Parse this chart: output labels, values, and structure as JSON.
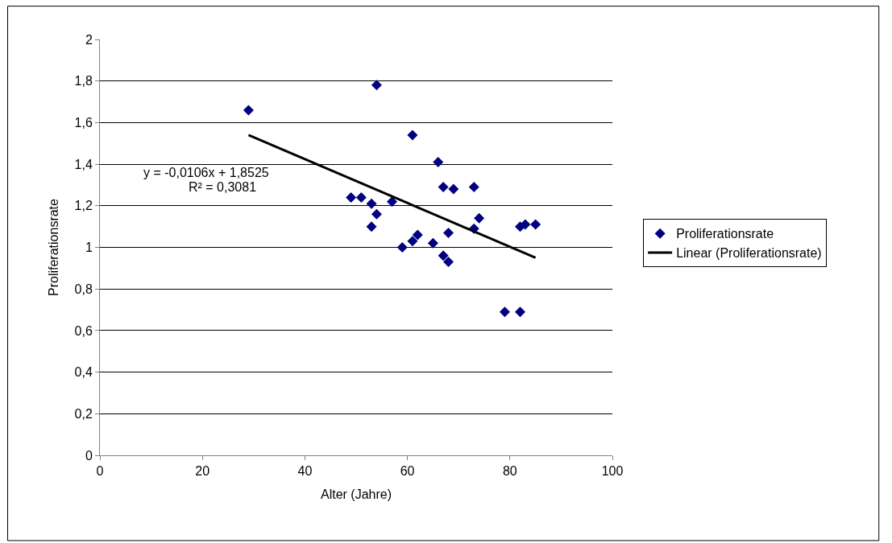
{
  "chart_data": {
    "type": "scatter",
    "xlabel": "Alter (Jahre)",
    "ylabel": "Proliferationsrate",
    "xlim": [
      0,
      100
    ],
    "xticks": [
      0,
      20,
      40,
      60,
      80,
      100
    ],
    "ylim": [
      0,
      2
    ],
    "yticks": [
      0,
      {
        "value": 0.2,
        "label": "0,2"
      },
      {
        "value": 0.4,
        "label": "0,4"
      },
      {
        "value": 0.6,
        "label": "0,6"
      },
      {
        "value": 0.8,
        "label": "0,8"
      },
      1,
      {
        "value": 1.2,
        "label": "1,2"
      },
      {
        "value": 1.4,
        "label": "1,4"
      },
      {
        "value": 1.6,
        "label": "1,6"
      },
      {
        "value": 1.8,
        "label": "1,8"
      },
      2
    ],
    "grid": "y",
    "legend": "right",
    "annotations": [
      "y = -0,0106x + 1,8525",
      "R² = 0,3081"
    ],
    "series": [
      {
        "name": "Proliferationsrate",
        "marker": "diamond",
        "color": "#000080",
        "x": [
          29,
          54,
          49,
          51,
          53,
          53,
          54,
          57,
          59,
          61,
          61,
          62,
          65,
          66,
          67,
          67,
          68,
          68,
          69,
          73,
          73,
          74,
          79,
          82,
          82,
          83,
          85
        ],
        "values": [
          1.66,
          1.78,
          1.24,
          1.24,
          1.21,
          1.1,
          1.16,
          1.22,
          1.0,
          1.54,
          1.03,
          1.06,
          1.02,
          1.41,
          1.29,
          0.96,
          0.93,
          1.07,
          1.28,
          1.29,
          1.09,
          1.14,
          0.69,
          0.69,
          1.1,
          1.11,
          1.11
        ]
      },
      {
        "name": "Linear (Proliferationsrate)",
        "type": "line",
        "marker": "none",
        "color": "#000000",
        "line_style": "solid",
        "x": [
          29,
          85
        ],
        "values": [
          1.54,
          0.95
        ]
      }
    ]
  }
}
